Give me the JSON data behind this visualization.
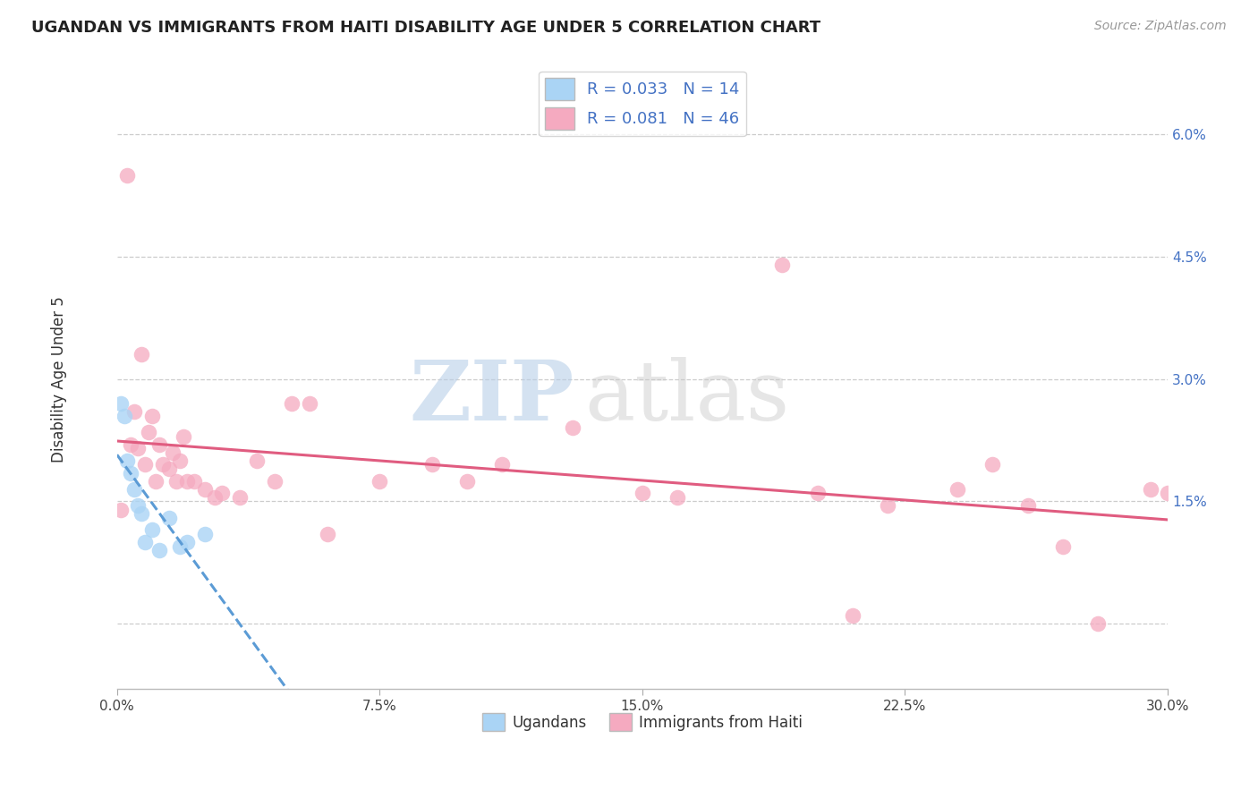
{
  "title": "UGANDAN VS IMMIGRANTS FROM HAITI DISABILITY AGE UNDER 5 CORRELATION CHART",
  "source": "Source: ZipAtlas.com",
  "ylabel": "Disability Age Under 5",
  "ugandan_R": "0.033",
  "ugandan_N": "14",
  "haiti_R": "0.081",
  "haiti_N": "46",
  "ugandan_color": "#aad4f5",
  "haiti_color": "#f5aac0",
  "ugandan_line_color": "#5b9bd5",
  "haiti_line_color": "#e05c80",
  "xlim": [
    0.0,
    0.3
  ],
  "ylim": [
    -0.008,
    0.068
  ],
  "ytick_vals": [
    0.0,
    0.015,
    0.03,
    0.045,
    0.06
  ],
  "ytick_labels": [
    "",
    "1.5%",
    "3.0%",
    "4.5%",
    "6.0%"
  ],
  "xtick_vals": [
    0.0,
    0.075,
    0.15,
    0.225,
    0.3
  ],
  "xtick_labels": [
    "0.0%",
    "7.5%",
    "15.0%",
    "22.5%",
    "30.0%"
  ],
  "background_color": "#ffffff",
  "grid_color": "#cccccc",
  "ugandan_x": [
    0.001,
    0.002,
    0.003,
    0.004,
    0.005,
    0.006,
    0.007,
    0.008,
    0.01,
    0.012,
    0.015,
    0.018,
    0.02,
    0.025
  ],
  "ugandan_y": [
    0.027,
    0.0255,
    0.02,
    0.0185,
    0.0165,
    0.0145,
    0.0135,
    0.01,
    0.0115,
    0.009,
    0.013,
    0.0095,
    0.01,
    0.011
  ],
  "haiti_x": [
    0.001,
    0.003,
    0.004,
    0.005,
    0.006,
    0.007,
    0.008,
    0.009,
    0.01,
    0.011,
    0.012,
    0.013,
    0.015,
    0.016,
    0.017,
    0.018,
    0.019,
    0.02,
    0.022,
    0.025,
    0.028,
    0.03,
    0.035,
    0.04,
    0.045,
    0.05,
    0.055,
    0.06,
    0.075,
    0.09,
    0.1,
    0.11,
    0.13,
    0.15,
    0.16,
    0.19,
    0.2,
    0.21,
    0.22,
    0.24,
    0.25,
    0.26,
    0.27,
    0.28,
    0.295,
    0.3
  ],
  "haiti_y": [
    0.014,
    0.055,
    0.022,
    0.026,
    0.0215,
    0.033,
    0.0195,
    0.0235,
    0.0255,
    0.0175,
    0.022,
    0.0195,
    0.019,
    0.021,
    0.0175,
    0.02,
    0.023,
    0.0175,
    0.0175,
    0.0165,
    0.0155,
    0.016,
    0.0155,
    0.02,
    0.0175,
    0.027,
    0.027,
    0.011,
    0.0175,
    0.0195,
    0.0175,
    0.0195,
    0.024,
    0.016,
    0.0155,
    0.044,
    0.016,
    0.001,
    0.0145,
    0.0165,
    0.0195,
    0.0145,
    0.0095,
    0.0,
    0.0165,
    0.016
  ]
}
